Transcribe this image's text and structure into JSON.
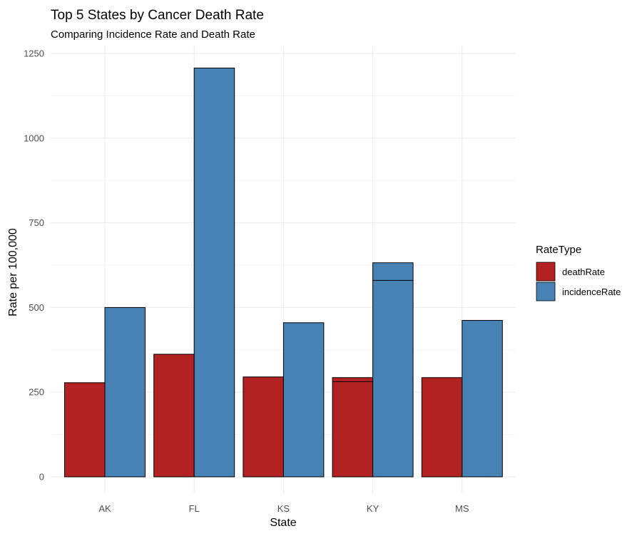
{
  "chart_data": {
    "type": "bar",
    "title": "Top 5 States by Cancer Death Rate",
    "subtitle": "Comparing Incidence Rate and Death Rate",
    "xlabel": "State",
    "ylabel": "Rate per 100,000",
    "ylim": [
      0,
      1250
    ],
    "yticks": [
      "0",
      "250",
      "500",
      "750",
      "1000",
      "1250"
    ],
    "ytick_values": [
      0,
      250,
      500,
      750,
      1000,
      1250
    ],
    "grid": true,
    "categories": [
      "AK",
      "FL",
      "KS",
      "KY",
      "MS"
    ],
    "series": [
      {
        "name": "deathRate",
        "color": "#B22222",
        "values": [
          278,
          362,
          295,
          293,
          293
        ]
      },
      {
        "name": "incidenceRate",
        "color": "#4682B4",
        "values": [
          500,
          1207,
          455,
          632,
          462
        ]
      }
    ],
    "segment_lines": [
      {
        "category": "KY",
        "series": "deathRate",
        "value": 281
      },
      {
        "category": "KY",
        "series": "incidenceRate",
        "value": 580
      }
    ],
    "legend": {
      "title": "RateType",
      "position": "right"
    }
  }
}
